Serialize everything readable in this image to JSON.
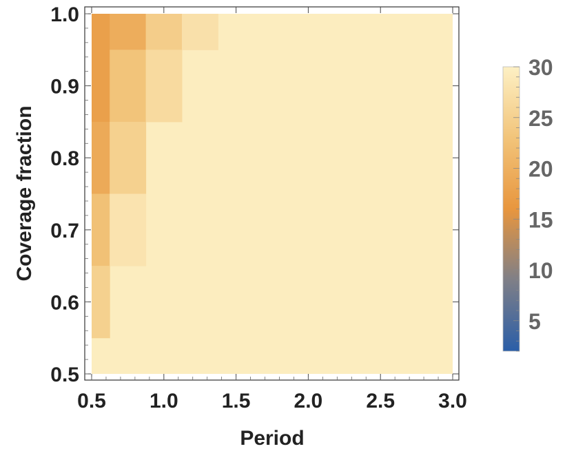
{
  "chart_data": {
    "type": "heatmap",
    "title": "",
    "xlabel": "Period",
    "ylabel": "Coverage fraction",
    "xlim": [
      0.5,
      3.0
    ],
    "ylim": [
      0.5,
      1.0
    ],
    "x_ticks": [
      "0.5",
      "1.0",
      "1.5",
      "2.0",
      "2.5",
      "3.0"
    ],
    "y_ticks": [
      "0.5",
      "0.6",
      "0.7",
      "0.8",
      "0.9",
      "1.0"
    ],
    "colorbar": {
      "range": [
        2,
        30
      ],
      "ticks": [
        "5",
        "10",
        "15",
        "20",
        "25",
        "30"
      ],
      "colormap": [
        "#2a5ea8",
        "#7f7f87",
        "#e8963e",
        "#f2c47a",
        "#fdf0c4"
      ]
    },
    "background_value": 29.5,
    "cells": [
      {
        "x": [
          0.5,
          0.625
        ],
        "y": [
          0.95,
          1.0
        ],
        "value": 17.5
      },
      {
        "x": [
          0.625,
          0.875
        ],
        "y": [
          0.95,
          1.0
        ],
        "value": 19.5
      },
      {
        "x": [
          0.875,
          1.125
        ],
        "y": [
          0.95,
          1.0
        ],
        "value": 24.5
      },
      {
        "x": [
          1.125,
          1.375
        ],
        "y": [
          0.95,
          1.0
        ],
        "value": 27.5
      },
      {
        "x": [
          0.5,
          0.625
        ],
        "y": [
          0.85,
          0.95
        ],
        "value": 17.5
      },
      {
        "x": [
          0.625,
          0.875
        ],
        "y": [
          0.85,
          0.95
        ],
        "value": 23.0
      },
      {
        "x": [
          0.875,
          1.125
        ],
        "y": [
          0.85,
          0.95
        ],
        "value": 26.5
      },
      {
        "x": [
          0.5,
          0.625
        ],
        "y": [
          0.75,
          0.85
        ],
        "value": 19.0
      },
      {
        "x": [
          0.625,
          0.875
        ],
        "y": [
          0.75,
          0.85
        ],
        "value": 25.0
      },
      {
        "x": [
          0.5,
          0.625
        ],
        "y": [
          0.65,
          0.75
        ],
        "value": 22.5
      },
      {
        "x": [
          0.625,
          0.875
        ],
        "y": [
          0.65,
          0.75
        ],
        "value": 28.0
      },
      {
        "x": [
          0.5,
          0.625
        ],
        "y": [
          0.55,
          0.65
        ],
        "value": 25.0
      }
    ]
  }
}
